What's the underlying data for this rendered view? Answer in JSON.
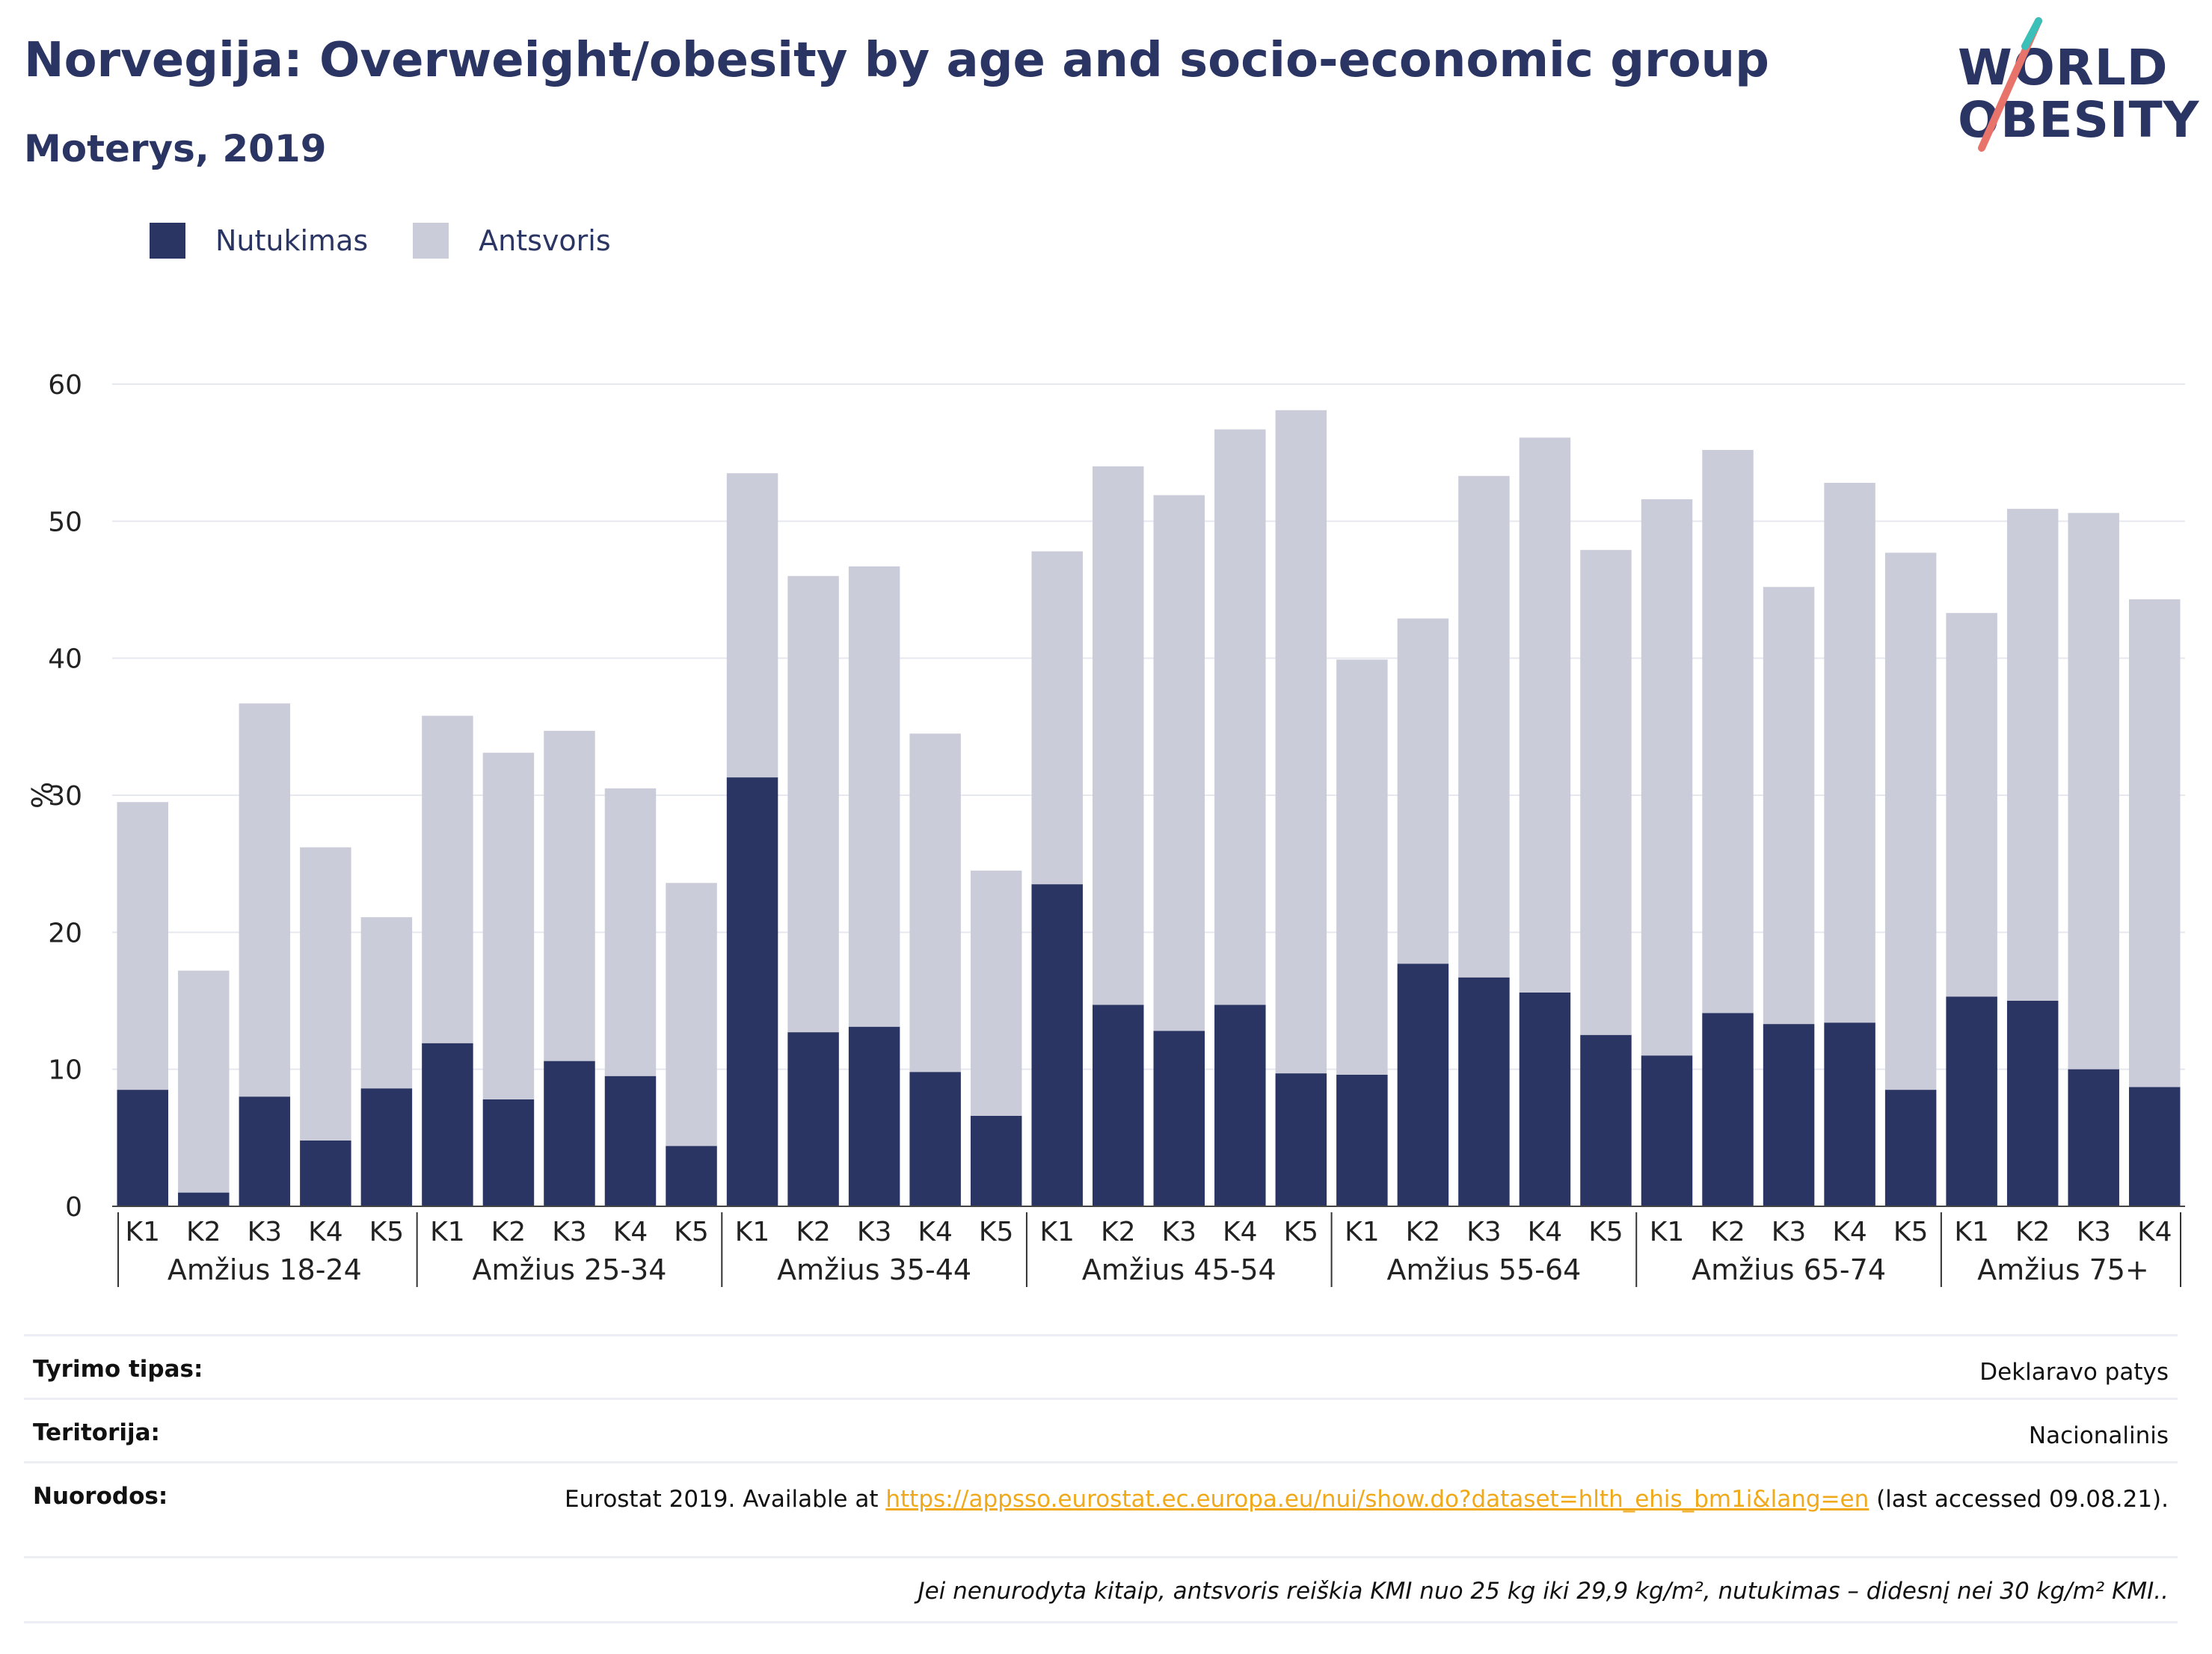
{
  "title": "Norvegija: Overweight/obesity by age and socio-economic group",
  "subtitle": "Moterys, 2019",
  "logo": {
    "line1": "WORLD",
    "line2": "OBESITY"
  },
  "legend": [
    {
      "label": "Nutukimas",
      "color": "#2b3563"
    },
    {
      "label": "Antsvoris",
      "color": "#cacdd9"
    }
  ],
  "footer": {
    "survey_label": "Tyrimo tipas:",
    "survey_value": "Deklaravo patys",
    "territory_label": "Teritorija:",
    "territory_value": "Nacionalinis",
    "refs_label": "Nuorodos:",
    "refs_prefix": "Eurostat 2019. Available at ",
    "refs_link": "https://appsso.eurostat.ec.europa.eu/nui/show.do?dataset=hlth_ehis_bm1i&lang=en",
    "refs_suffix": " (last accessed 09.08.21).",
    "note": "Jei nenurodyta kitaip, antsvoris reiškia KMI nuo 25 kg iki 29,9 kg/m², nutukimas – didesnį nei 30 kg/m² KMI.."
  },
  "chart_data": {
    "type": "bar",
    "stacked": true,
    "ylabel": "%",
    "ylim": [
      0,
      60
    ],
    "yticks": [
      0,
      10,
      20,
      30,
      40,
      50,
      60
    ],
    "grid": true,
    "groups": [
      {
        "label": "Amžius 18-24",
        "categories": [
          "K1",
          "K2",
          "K3",
          "K4",
          "K5"
        ]
      },
      {
        "label": "Amžius 25-34",
        "categories": [
          "K1",
          "K2",
          "K3",
          "K4",
          "K5"
        ]
      },
      {
        "label": "Amžius 35-44",
        "categories": [
          "K1",
          "K2",
          "K3",
          "K4",
          "K5"
        ]
      },
      {
        "label": "Amžius 45-54",
        "categories": [
          "K1",
          "K2",
          "K3",
          "K4",
          "K5"
        ]
      },
      {
        "label": "Amžius 55-64",
        "categories": [
          "K1",
          "K2",
          "K3",
          "K4",
          "K5"
        ]
      },
      {
        "label": "Amžius 65-74",
        "categories": [
          "K1",
          "K2",
          "K3",
          "K4",
          "K5"
        ]
      },
      {
        "label": "Amžius 75+",
        "categories": [
          "K1",
          "K2",
          "K3",
          "K4"
        ]
      }
    ],
    "series": [
      {
        "name": "Nutukimas",
        "color": "#2b3563",
        "values": [
          8.5,
          1.0,
          8.0,
          4.8,
          8.6,
          11.9,
          7.8,
          10.6,
          9.5,
          4.4,
          31.3,
          12.7,
          13.1,
          9.8,
          6.6,
          23.5,
          14.7,
          12.8,
          14.7,
          9.7,
          9.6,
          17.7,
          16.7,
          15.6,
          12.5,
          11.0,
          14.1,
          13.3,
          13.4,
          8.5,
          15.3,
          15.0,
          10.0,
          8.7
        ]
      },
      {
        "name": "Antsvoris",
        "color": "#cacdd9",
        "values": [
          21.0,
          16.2,
          28.7,
          21.4,
          12.5,
          23.9,
          25.3,
          24.1,
          21.0,
          19.2,
          22.2,
          33.3,
          33.6,
          24.7,
          17.9,
          24.3,
          39.3,
          39.1,
          42.0,
          48.4,
          30.3,
          25.2,
          36.6,
          40.5,
          35.4,
          40.6,
          41.1,
          31.9,
          39.4,
          39.2,
          28.0,
          35.9,
          40.6,
          35.6
        ]
      }
    ]
  }
}
